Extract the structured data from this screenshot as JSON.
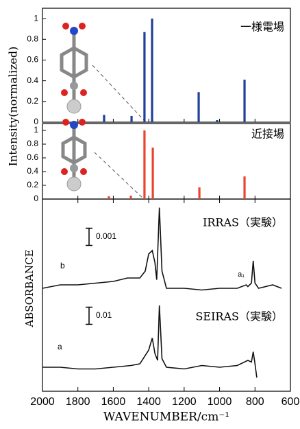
{
  "chart_data": [
    {
      "type": "bar",
      "ylabel": "Intensity(normalized)",
      "annotation": "一様電場",
      "color": "#1f3f9a",
      "xlim": [
        2000,
        600
      ],
      "ylim": [
        0,
        1.1
      ],
      "yticks": [
        0,
        0.2,
        0.4,
        0.6,
        0.8,
        1
      ],
      "x": [
        1652,
        1497,
        1424,
        1381,
        1118,
        1014,
        859
      ],
      "values": [
        0.07,
        0.06,
        0.87,
        1.0,
        0.29,
        0.02,
        0.41
      ]
    },
    {
      "type": "bar",
      "annotation": "近接場",
      "color": "#e8452c",
      "xlim": [
        2000,
        600
      ],
      "ylim": [
        0,
        1.1
      ],
      "yticks": [
        0,
        0.2,
        0.4,
        0.6,
        0.8,
        1
      ],
      "x": [
        1625,
        1501,
        1424,
        1377,
        1114,
        859
      ],
      "values": [
        0.04,
        0.05,
        1.0,
        0.75,
        0.17,
        0.33
      ]
    },
    {
      "type": "line",
      "ylabel": "ABSORBANCE",
      "xlabel": "WAVENUMBER/cm⁻¹",
      "xlim": [
        2000,
        600
      ],
      "xticks": [
        2000,
        1800,
        1600,
        1400,
        1200,
        1000,
        800,
        600
      ],
      "peak_label": "a₁",
      "series": [
        {
          "name": "b",
          "label": "IRRAS（実験）",
          "color": "#111",
          "scale": 0.001,
          "x": [
            2000,
            1900,
            1800,
            1700,
            1600,
            1520,
            1450,
            1420,
            1400,
            1380,
            1365,
            1355,
            1340,
            1325,
            1300,
            1200,
            1100,
            1000,
            900,
            850,
            840,
            820,
            810,
            800,
            780,
            700,
            650
          ],
          "values": [
            0,
            0.0002,
            0.0002,
            0.0003,
            0.0004,
            0.0006,
            0.0006,
            0.001,
            0.002,
            0.0022,
            0.0015,
            0.0005,
            0.0047,
            0.001,
            0,
            0,
            -0.0001,
            0,
            0,
            0.0002,
            0.0001,
            0.0003,
            0.0016,
            0.0003,
            0,
            0.0002,
            0
          ]
        },
        {
          "name": "a",
          "label": "SEIRAS（実験）",
          "color": "#111",
          "scale": 0.01,
          "x": [
            2000,
            1900,
            1800,
            1700,
            1600,
            1500,
            1450,
            1400,
            1380,
            1365,
            1350,
            1340,
            1325,
            1300,
            1200,
            1100,
            1000,
            900,
            840,
            820,
            810,
            800,
            790
          ],
          "values": [
            0,
            0,
            -0.001,
            -0.001,
            0,
            0.001,
            0.002,
            0.01,
            0.017,
            0.008,
            0.004,
            0.036,
            0.005,
            0,
            -0.001,
            0.001,
            0,
            0.001,
            0.004,
            0.003,
            0.009,
            0.002,
            -0.006
          ]
        }
      ]
    }
  ]
}
